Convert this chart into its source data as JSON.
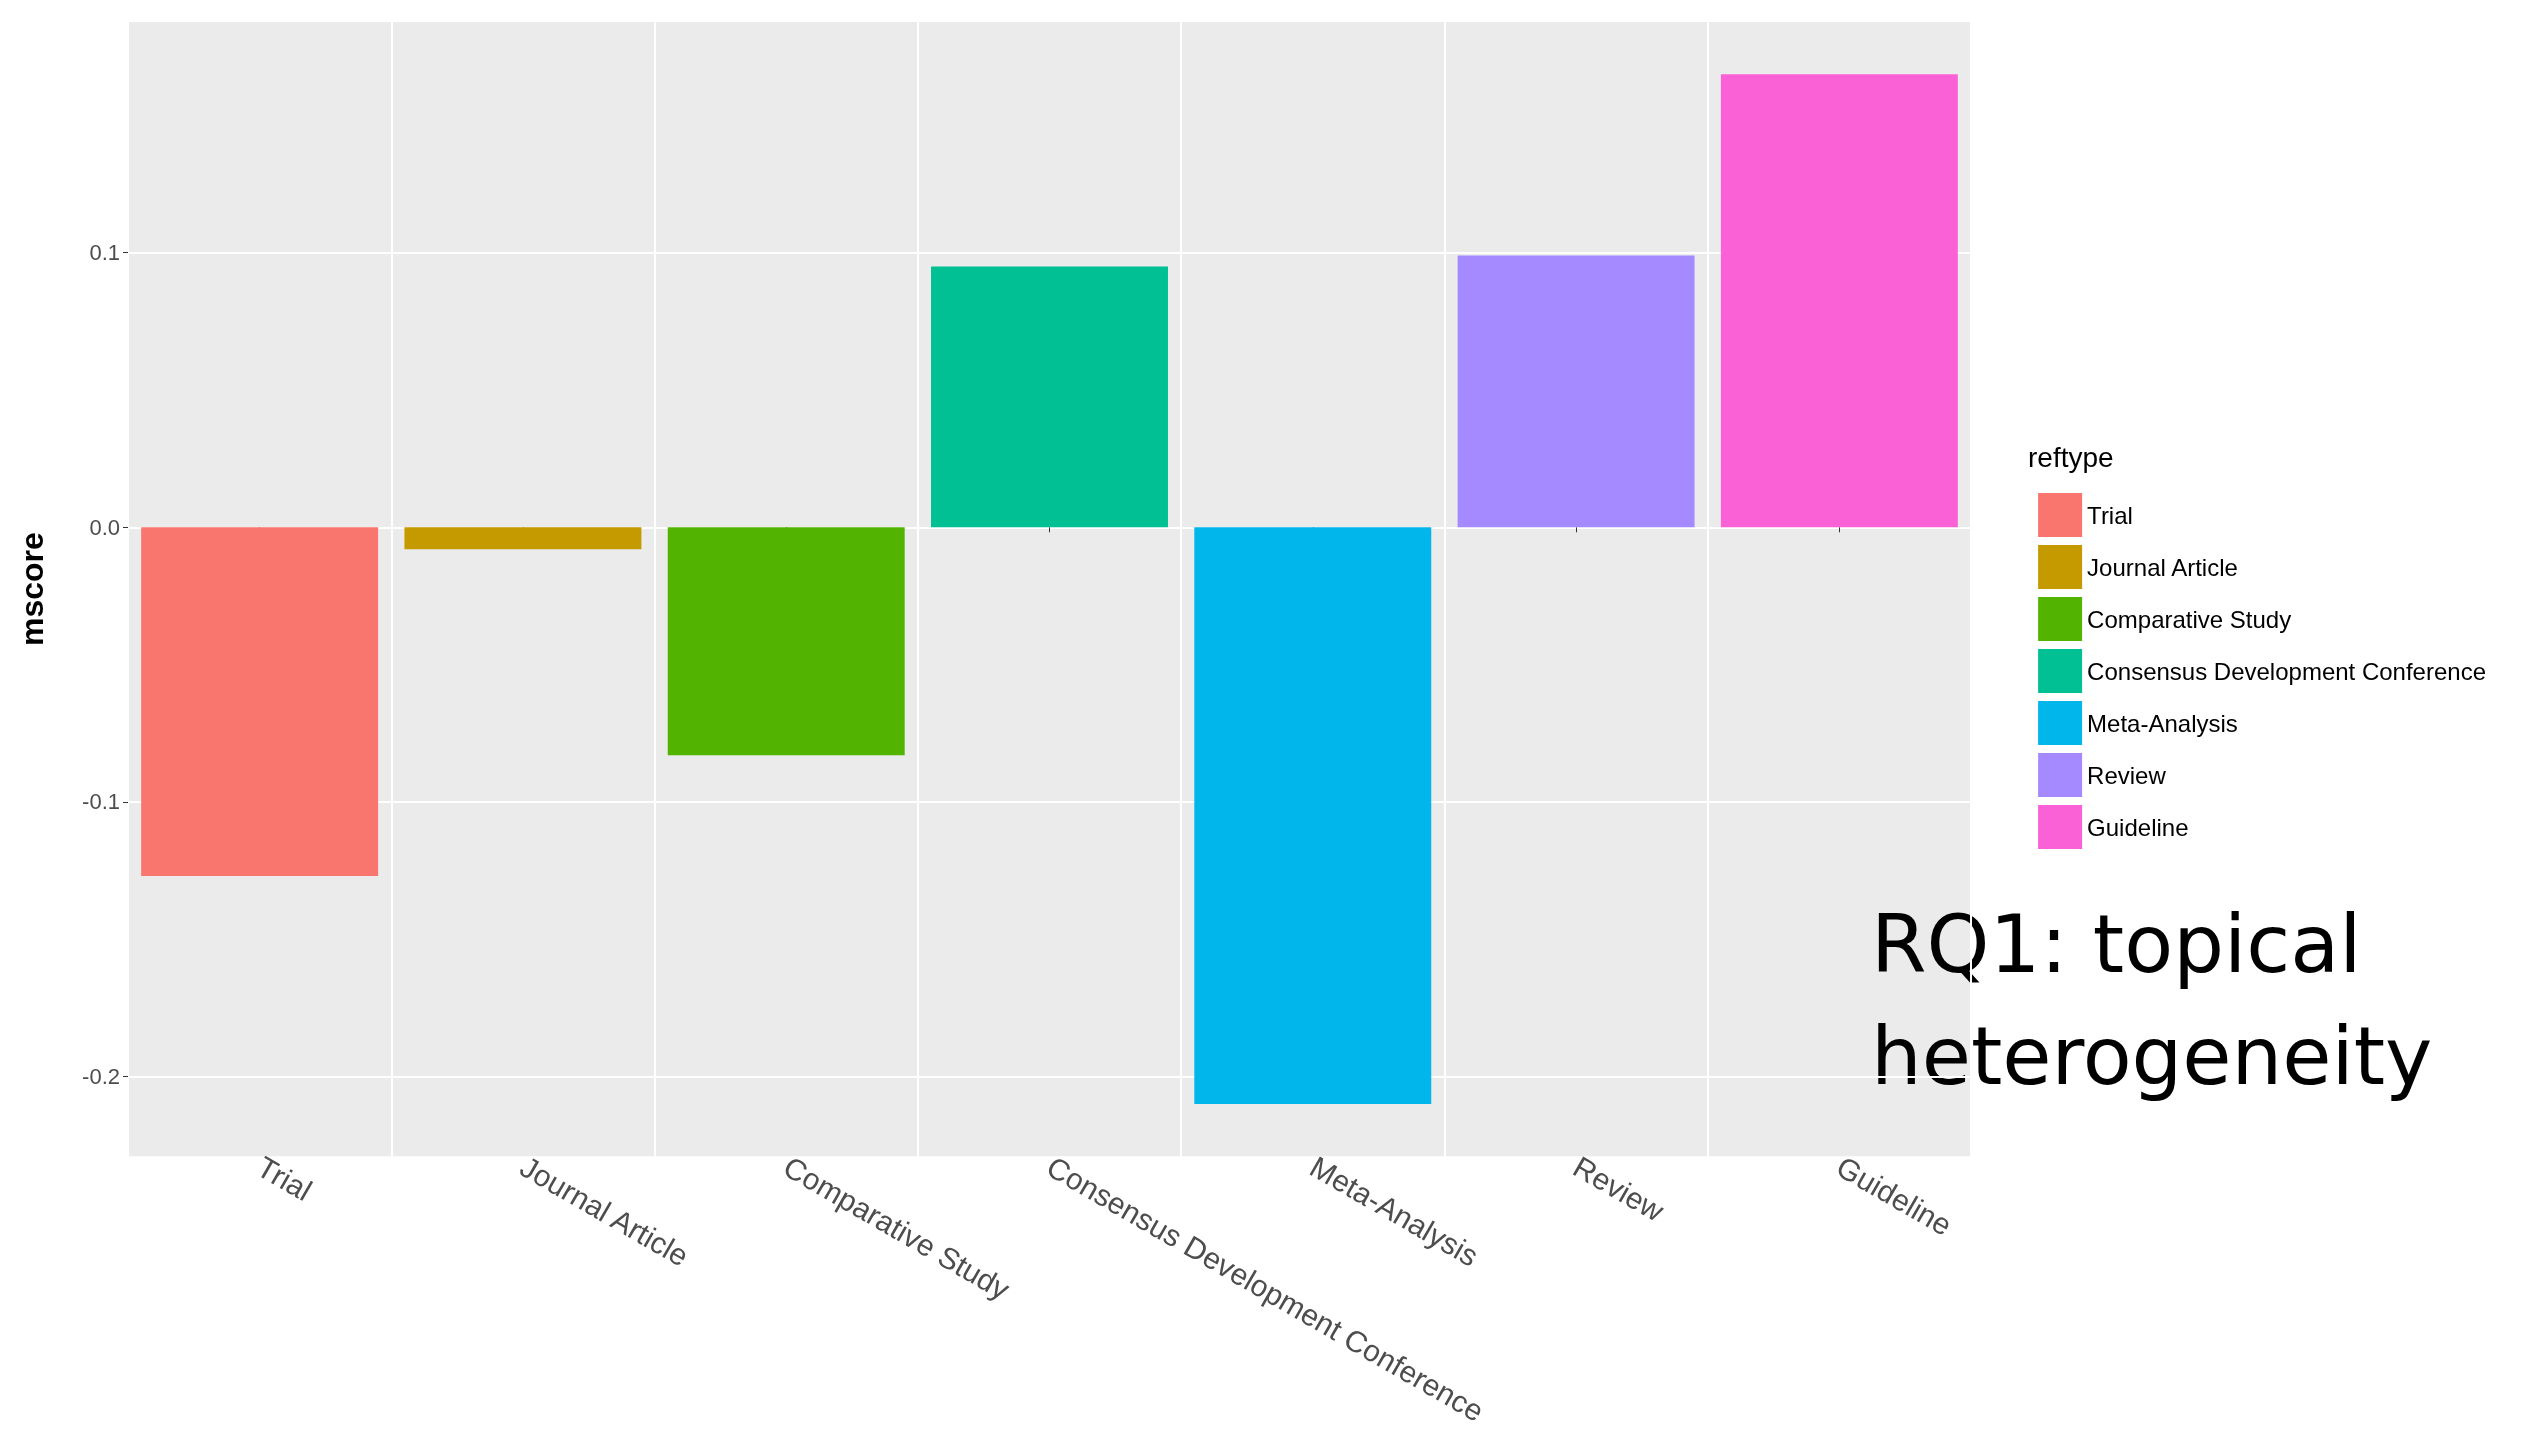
{
  "chart_data": {
    "type": "bar",
    "ylabel": "mscore",
    "legend_title": "reftype",
    "stacked": true,
    "categories": [
      "Trial",
      "Journal Article",
      "Comparative Study",
      "Consensus Development Conference",
      "Meta-Analysis",
      "Review",
      "Guideline"
    ],
    "series": [
      {
        "name": "Trial",
        "color": "#f8766d",
        "values": [
          -0.127,
          null,
          null,
          null,
          null,
          null,
          null
        ]
      },
      {
        "name": "Journal Article",
        "color": "#c49a00",
        "values": [
          null,
          -0.008,
          null,
          null,
          null,
          null,
          null
        ]
      },
      {
        "name": "Comparative Study",
        "color": "#53b400",
        "values": [
          null,
          null,
          -0.083,
          null,
          null,
          null,
          null
        ]
      },
      {
        "name": "Consensus Development Conference",
        "color": "#00c094",
        "values": [
          null,
          null,
          null,
          0.095,
          null,
          null,
          null
        ]
      },
      {
        "name": "Meta-Analysis",
        "color": "#00b6eb",
        "values": [
          null,
          null,
          null,
          null,
          -0.21,
          null,
          null
        ]
      },
      {
        "name": "Review",
        "color": "#a58aff",
        "values": [
          null,
          null,
          null,
          null,
          null,
          0.099,
          null
        ]
      },
      {
        "name": "Guideline",
        "color": "#fb61d7",
        "values": [
          null,
          null,
          null,
          null,
          null,
          null,
          0.165
        ]
      }
    ],
    "ylim": [
      -0.229,
      0.184
    ],
    "yticks": [
      {
        "value": -0.2,
        "label": "-0.2"
      },
      {
        "value": -0.1,
        "label": "-0.1"
      },
      {
        "value": 0,
        "label": "0.0"
      },
      {
        "value": 0.1,
        "label": "0.1"
      }
    ],
    "grid": true,
    "legend": "right",
    "annotations": [
      "RQ1: topical heterogeneity"
    ]
  }
}
